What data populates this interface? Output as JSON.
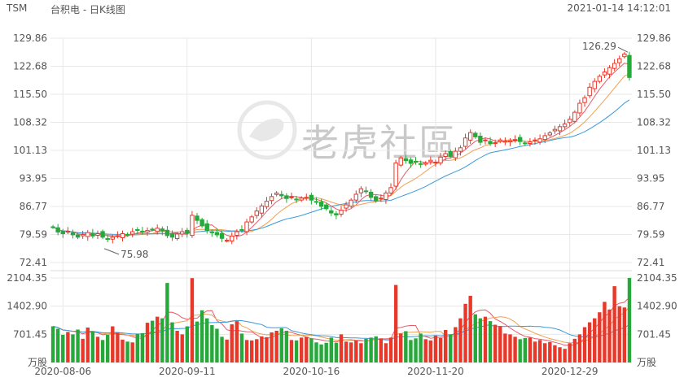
{
  "header": {
    "symbol": "TSM",
    "title": "台积电 - 日K线图",
    "timestamp": "2021-01-14 14:12:01"
  },
  "watermark": {
    "text": "老虎社區"
  },
  "colors": {
    "up": "#e8382a",
    "down": "#26a83a",
    "ma_short": "#e85a6a",
    "ma_mid": "#f0a050",
    "ma_long": "#3a9ad9",
    "grid": "#e8e8e8",
    "axis_text": "#555555"
  },
  "chart_data": [
    {
      "type": "candlestick",
      "title": "",
      "price_ticks": [
        "129.86",
        "122.68",
        "115.50",
        "108.32",
        "101.13",
        "93.95",
        "86.77",
        "79.59",
        "72.41"
      ],
      "ylim": [
        72.41,
        129.86
      ],
      "date_labels": [
        "2020-08-06",
        "2020-09-11",
        "2020-10-16",
        "2020-11-20",
        "2020-12-29"
      ],
      "date_label_index": [
        2,
        27,
        52,
        77,
        104
      ],
      "annotations": [
        {
          "text": "126.29",
          "value": 126.29,
          "index": 116,
          "kind": "high"
        },
        {
          "text": "75.98",
          "value": 75.98,
          "index": 10,
          "kind": "low"
        }
      ],
      "ma_colors": [
        "#e85a6a",
        "#f0a050",
        "#3a9ad9"
      ],
      "close": [
        81.5,
        80.2,
        79.8,
        80.4,
        79.5,
        78.9,
        79.6,
        80.1,
        79.2,
        79.8,
        78.9,
        78.4,
        78.9,
        79.3,
        79.8,
        79.5,
        80.3,
        80.8,
        80.2,
        80.6,
        80.9,
        81.2,
        80.5,
        79.3,
        78.9,
        79.7,
        80.3,
        79.9,
        84.5,
        83.2,
        81.8,
        80.6,
        80.1,
        79.5,
        78.6,
        78.1,
        79.2,
        80.3,
        80.7,
        82.8,
        84.1,
        85.6,
        86.9,
        88.1,
        89.3,
        90.2,
        89.5,
        88.8,
        89.2,
        88.6,
        88.9,
        89.1,
        88.4,
        87.9,
        86.8,
        86.2,
        85.1,
        84.6,
        85.8,
        87.2,
        88.4,
        89.9,
        91.3,
        90.6,
        89.1,
        88.2,
        88.9,
        90.2,
        91.6,
        97.9,
        99.2,
        98.5,
        97.8,
        98.1,
        97.6,
        97.9,
        98.6,
        98.1,
        99.4,
        100.3,
        99.6,
        100.9,
        101.8,
        104.3,
        105.7,
        104.6,
        103.2,
        103.8,
        102.9,
        103.1,
        103.8,
        103.5,
        103.6,
        103.9,
        103.4,
        102.9,
        103.3,
        103.8,
        104.1,
        104.9,
        105.6,
        106.5,
        107.2,
        107.9,
        109.1,
        110.9,
        113.2,
        114.6,
        117.3,
        118.8,
        120.1,
        121.2,
        122.3,
        123.4,
        124.6,
        125.8,
        119.8
      ],
      "volume_ticks": [
        "2104.35",
        "1402.90",
        "701.45",
        "万股"
      ],
      "ylim_volume": [
        0,
        2104.35
      ],
      "volume": [
        900,
        840,
        690,
        760,
        700,
        820,
        590,
        870,
        780,
        640,
        560,
        690,
        900,
        740,
        570,
        520,
        500,
        710,
        730,
        990,
        1040,
        1140,
        1100,
        1980,
        1000,
        790,
        700,
        900,
        2100,
        1020,
        1300,
        1100,
        930,
        840,
        640,
        570,
        950,
        1030,
        720,
        560,
        550,
        580,
        650,
        630,
        750,
        790,
        850,
        790,
        560,
        550,
        620,
        640,
        600,
        500,
        450,
        490,
        620,
        490,
        700,
        520,
        500,
        550,
        480,
        590,
        620,
        650,
        600,
        480,
        620,
        1930,
        720,
        780,
        560,
        600,
        720,
        580,
        550,
        670,
        610,
        810,
        700,
        880,
        1100,
        1460,
        1660,
        1200,
        1100,
        1140,
        1030,
        940,
        900,
        720,
        700,
        640,
        580,
        610,
        620,
        520,
        560,
        480,
        510,
        430,
        380,
        340,
        480,
        590,
        700,
        880,
        1000,
        1100,
        1250,
        1510,
        1320,
        1900,
        1400,
        1370,
        2104.35
      ],
      "vol_ma_colors": [
        "#e85a6a",
        "#f0a050",
        "#3a9ad9"
      ]
    }
  ]
}
